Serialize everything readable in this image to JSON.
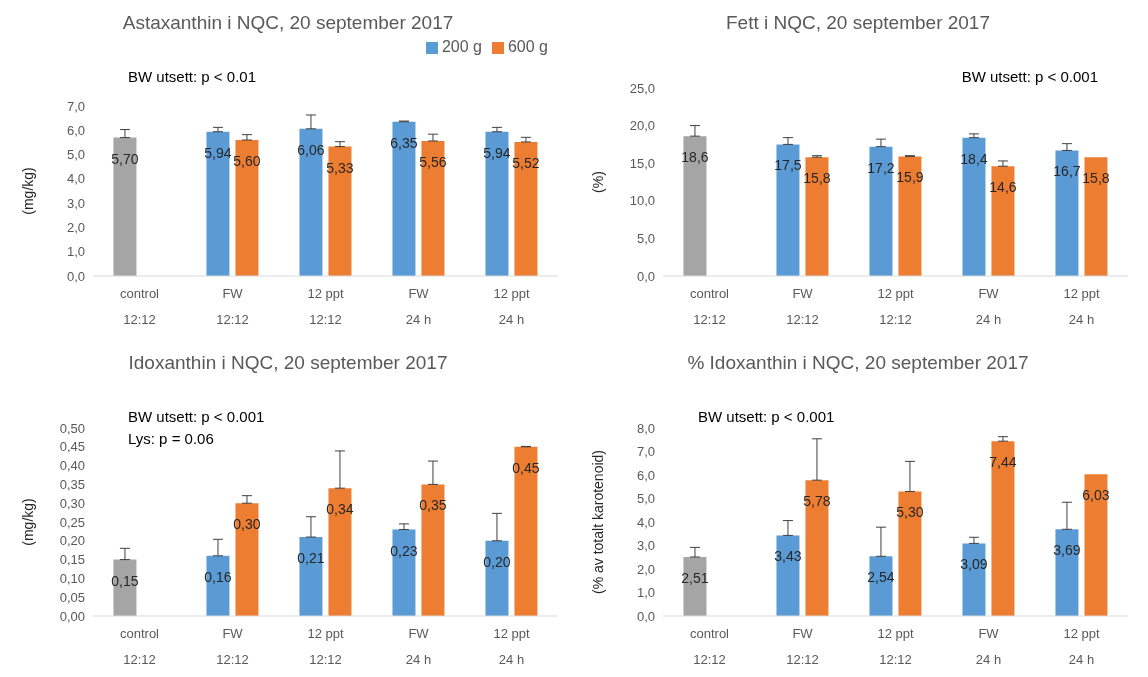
{
  "chart_data": [
    {
      "type": "bar",
      "title": "Astaxanthin i NQC, 20 september 2017",
      "ylabel": "(mg/kg)",
      "categories": [
        "control\n12:12",
        "FW\n12:12",
        "12 ppt\n12:12",
        "FW\n24 h",
        "12 ppt\n24 h"
      ],
      "series": [
        {
          "name": "200 g",
          "color": "#5b9bd5",
          "colors": [
            "#a5a5a5",
            "#5b9bd5",
            "#5b9bd5",
            "#5b9bd5",
            "#5b9bd5"
          ],
          "values": [
            5.7,
            5.94,
            6.06,
            6.35,
            5.94
          ],
          "value_labels": [
            "5,70",
            "5,94",
            "6,06",
            "6,35",
            "5,94"
          ],
          "errors": [
            [
              5.7,
              6.03
            ],
            [
              5.94,
              6.12
            ],
            [
              6.06,
              6.63
            ],
            [
              6.35,
              6.38
            ],
            [
              5.94,
              6.12
            ]
          ]
        },
        {
          "name": "600 g",
          "color": "#ed7d31",
          "values": [
            null,
            5.6,
            5.33,
            5.56,
            5.52
          ],
          "value_labels": [
            null,
            "5,60",
            "5,33",
            "5,56",
            "5,52"
          ],
          "errors": [
            null,
            [
              5.6,
              5.82
            ],
            [
              5.33,
              5.53
            ],
            [
              5.56,
              5.84
            ],
            [
              5.52,
              5.71
            ]
          ]
        }
      ],
      "ylim": [
        0,
        7
      ],
      "yticks": [
        {
          "value": 0,
          "label": "0,0"
        },
        {
          "value": 1,
          "label": "1,0"
        },
        {
          "value": 2,
          "label": "2,0"
        },
        {
          "value": 3,
          "label": "3,0"
        },
        {
          "value": 4,
          "label": "4,0"
        },
        {
          "value": 5,
          "label": "5,0"
        },
        {
          "value": 6,
          "label": "6,0"
        },
        {
          "value": 7,
          "label": "7,0"
        }
      ],
      "legend": "top right",
      "annotations": [
        "BW utsett: p < 0.01"
      ]
    },
    {
      "type": "bar",
      "title": "Fett i NQC, 20 september 2017",
      "ylabel": "(%)",
      "categories": [
        "control\n12:12",
        "FW\n12:12",
        "12 ppt\n12:12",
        "FW\n24 h",
        "12 ppt\n24 h"
      ],
      "series": [
        {
          "color": "#5b9bd5",
          "colors": [
            "#a5a5a5",
            "#5b9bd5",
            "#5b9bd5",
            "#5b9bd5",
            "#5b9bd5"
          ],
          "values": [
            18.6,
            17.5,
            17.2,
            18.4,
            16.7
          ],
          "value_labels": [
            "18,6",
            "17,5",
            "17,2",
            "18,4",
            "16,7"
          ],
          "errors": [
            [
              18.6,
              20.0
            ],
            [
              17.5,
              18.4
            ],
            [
              17.2,
              18.2
            ],
            [
              18.4,
              18.9
            ],
            [
              16.7,
              17.6
            ]
          ]
        },
        {
          "color": "#ed7d31",
          "values": [
            null,
            15.8,
            15.9,
            14.6,
            15.8
          ],
          "value_labels": [
            null,
            "15,8",
            "15,9",
            "14,6",
            "15,8"
          ],
          "errors": [
            null,
            [
              15.8,
              16.0
            ],
            [
              15.9,
              16.0
            ],
            [
              14.6,
              15.3
            ],
            null
          ]
        }
      ],
      "ylim": [
        0,
        25
      ],
      "yticks": [
        {
          "value": 0,
          "label": "0,0"
        },
        {
          "value": 5,
          "label": "5,0"
        },
        {
          "value": 10,
          "label": "10,0"
        },
        {
          "value": 15,
          "label": "15,0"
        },
        {
          "value": 20,
          "label": "20,0"
        },
        {
          "value": 25,
          "label": "25,0"
        }
      ],
      "annotations": [
        "BW utsett: p < 0.001"
      ]
    },
    {
      "type": "bar",
      "title": "Idoxanthin i NQC, 20 september 2017",
      "ylabel": "(mg/kg)",
      "categories": [
        "control\n12:12",
        "FW\n12:12",
        "12 ppt\n12:12",
        "FW\n24 h",
        "12 ppt\n24 h"
      ],
      "series": [
        {
          "color": "#5b9bd5",
          "colors": [
            "#a5a5a5",
            "#5b9bd5",
            "#5b9bd5",
            "#5b9bd5",
            "#5b9bd5"
          ],
          "values": [
            0.15,
            0.16,
            0.21,
            0.23,
            0.2
          ],
          "value_labels": [
            "0,15",
            "0,16",
            "0,21",
            "0,23",
            "0,20"
          ],
          "errors": [
            [
              0.15,
              0.18
            ],
            [
              0.16,
              0.204
            ],
            [
              0.21,
              0.264
            ],
            [
              0.23,
              0.245
            ],
            [
              0.2,
              0.273
            ]
          ]
        },
        {
          "color": "#ed7d31",
          "values": [
            null,
            0.3,
            0.34,
            0.35,
            0.45
          ],
          "value_labels": [
            null,
            "0,30",
            "0,34",
            "0,35",
            "0,45"
          ],
          "errors": [
            null,
            [
              0.3,
              0.32
            ],
            [
              0.34,
              0.439
            ],
            [
              0.35,
              0.412
            ],
            [
              0.45,
              0.451
            ]
          ]
        }
      ],
      "ylim": [
        0,
        0.5
      ],
      "yticks": [
        {
          "value": 0,
          "label": "0,00"
        },
        {
          "value": 0.05,
          "label": "0,05"
        },
        {
          "value": 0.1,
          "label": "0,10"
        },
        {
          "value": 0.15,
          "label": "0,15"
        },
        {
          "value": 0.2,
          "label": "0,20"
        },
        {
          "value": 0.25,
          "label": "0,25"
        },
        {
          "value": 0.3,
          "label": "0,30"
        },
        {
          "value": 0.35,
          "label": "0,35"
        },
        {
          "value": 0.4,
          "label": "0,40"
        },
        {
          "value": 0.45,
          "label": "0,45"
        },
        {
          "value": 0.5,
          "label": "0,50"
        }
      ],
      "annotations": [
        "BW utsett: p < 0.001",
        "Lys: p = 0.06"
      ]
    },
    {
      "type": "bar",
      "title": "% Idoxanthin i NQC, 20 september 2017",
      "ylabel": "(% av totalt karotenoid)",
      "categories": [
        "control\n12:12",
        "FW\n12:12",
        "12 ppt\n12:12",
        "FW\n24 h",
        "12 ppt\n24 h"
      ],
      "series": [
        {
          "color": "#5b9bd5",
          "colors": [
            "#a5a5a5",
            "#5b9bd5",
            "#5b9bd5",
            "#5b9bd5",
            "#5b9bd5"
          ],
          "values": [
            2.51,
            3.43,
            2.54,
            3.09,
            3.69
          ],
          "value_labels": [
            "2,51",
            "3,43",
            "2,54",
            "3,09",
            "3,69"
          ],
          "errors": [
            [
              2.51,
              2.92
            ],
            [
              3.43,
              4.06
            ],
            [
              2.54,
              3.78
            ],
            [
              3.09,
              3.35
            ],
            [
              3.69,
              4.84
            ]
          ]
        },
        {
          "color": "#ed7d31",
          "values": [
            null,
            5.78,
            5.3,
            7.44,
            6.03
          ],
          "value_labels": [
            null,
            "5,78",
            "5,30",
            "7,44",
            "6,03"
          ],
          "errors": [
            null,
            [
              5.78,
              7.54
            ],
            [
              5.3,
              6.58
            ],
            [
              7.44,
              7.63
            ],
            null
          ]
        }
      ],
      "ylim": [
        0,
        8
      ],
      "yticks": [
        {
          "value": 0,
          "label": "0,0"
        },
        {
          "value": 1,
          "label": "1,0"
        },
        {
          "value": 2,
          "label": "2,0"
        },
        {
          "value": 3,
          "label": "3,0"
        },
        {
          "value": 4,
          "label": "4,0"
        },
        {
          "value": 5,
          "label": "5,0"
        },
        {
          "value": 6,
          "label": "6,0"
        },
        {
          "value": 7,
          "label": "7,0"
        },
        {
          "value": 8,
          "label": "8,0"
        }
      ],
      "annotations": [
        "BW utsett: p < 0.001"
      ]
    }
  ]
}
